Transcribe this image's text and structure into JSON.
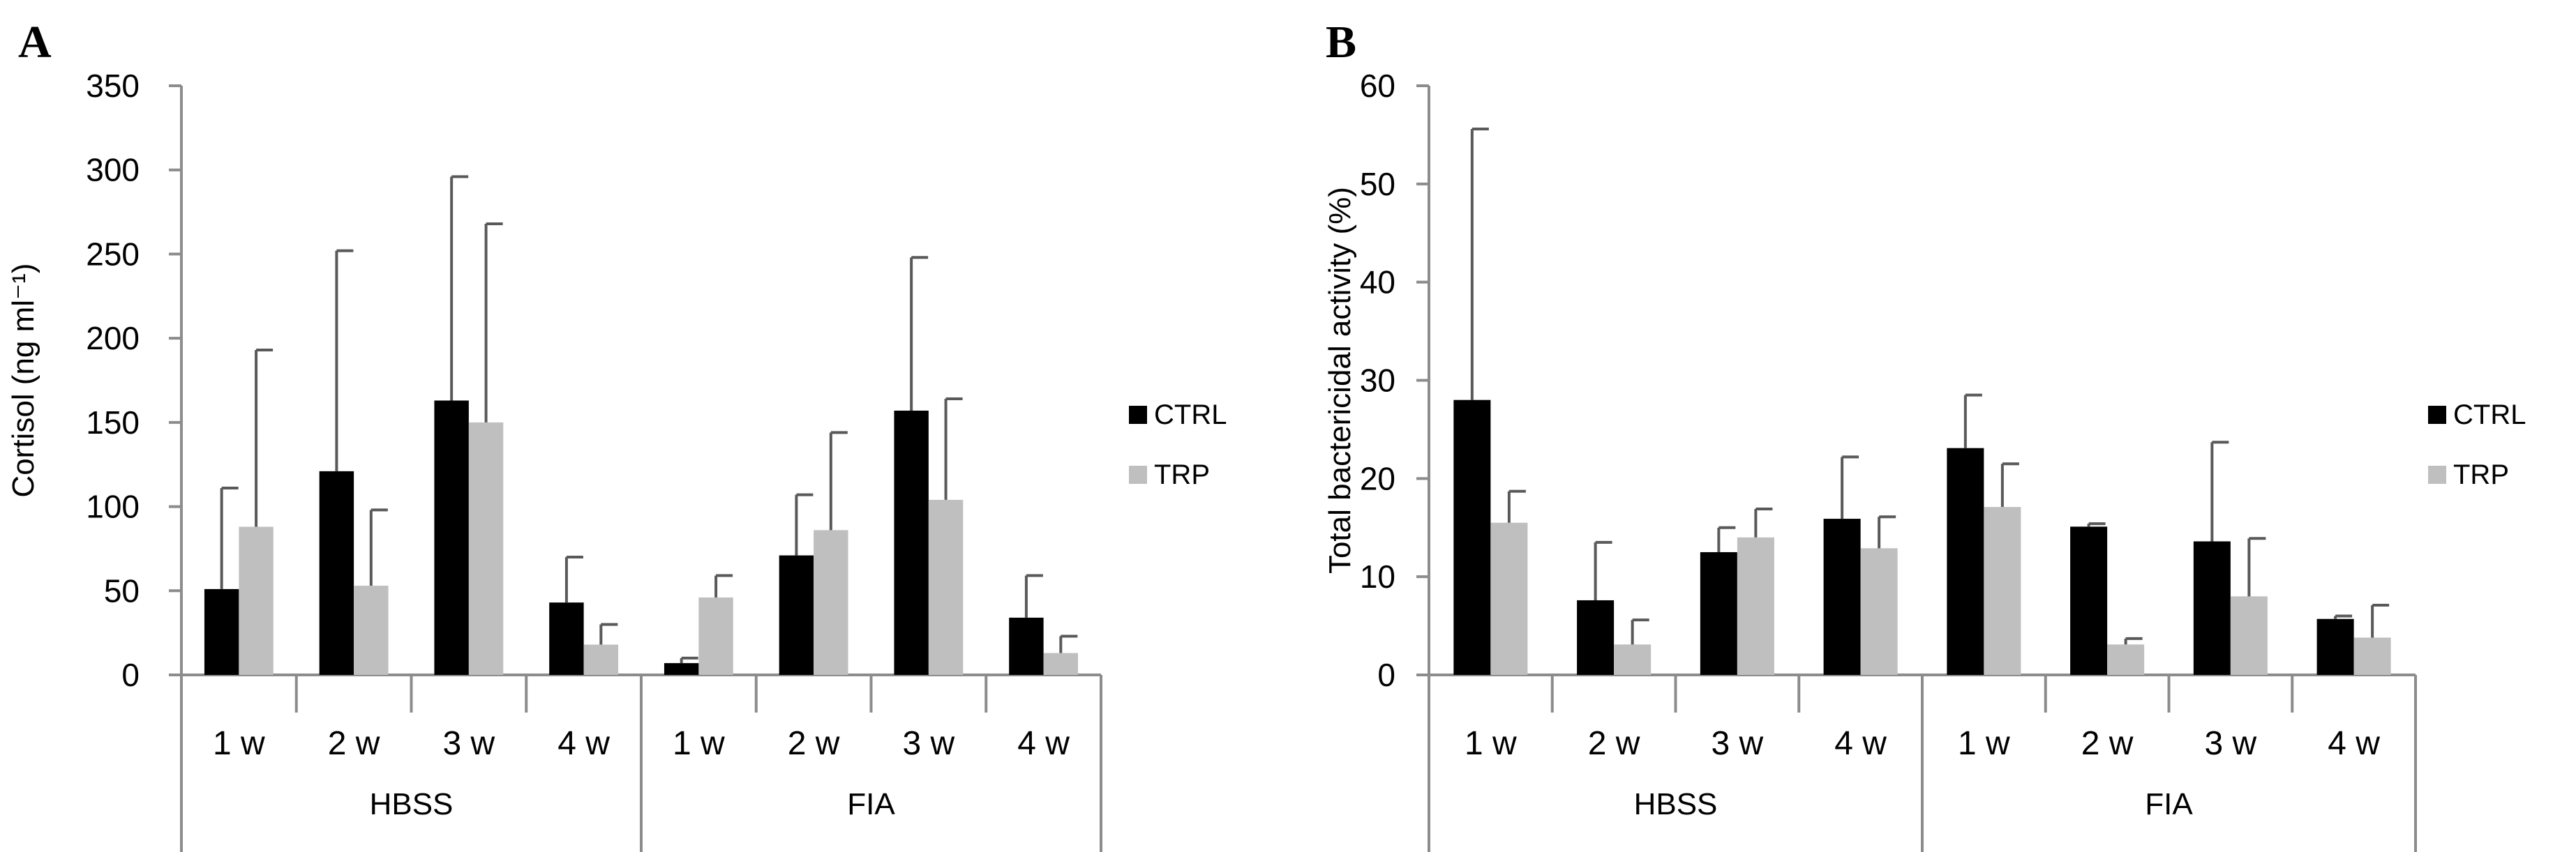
{
  "colors": {
    "ctrl": "#000000",
    "trp": "#bfbfbf",
    "axis": "#8c8c8c",
    "errorbar": "#595959",
    "text": "#000000"
  },
  "chart_data": [
    {
      "panel_label": "A",
      "type": "bar",
      "ylabel": "Cortisol (ng ml⁻¹)",
      "ylim": [
        0,
        350
      ],
      "yticks": [
        0,
        50,
        100,
        150,
        200,
        250,
        300,
        350
      ],
      "groups": [
        {
          "label": "HBSS",
          "categories": [
            "1 w",
            "2 w",
            "3 w",
            "4 w"
          ]
        },
        {
          "label": "FIA",
          "categories": [
            "1 w",
            "2 w",
            "3 w",
            "4 w"
          ]
        }
      ],
      "series": [
        {
          "name": "CTRL",
          "values": [
            51,
            121,
            163,
            43,
            7,
            71,
            157,
            34
          ],
          "errors": [
            60,
            131,
            133,
            27,
            3,
            36,
            91,
            25
          ]
        },
        {
          "name": "TRP",
          "values": [
            88,
            53,
            150,
            18,
            46,
            86,
            104,
            13
          ],
          "errors": [
            105,
            45,
            118,
            12,
            13,
            58,
            60,
            10
          ]
        }
      ],
      "legend": [
        "CTRL",
        "TRP"
      ],
      "legend_position": "right"
    },
    {
      "panel_label": "B",
      "type": "bar",
      "ylabel": "Total bactericidal activity (%)",
      "ylim": [
        0,
        60
      ],
      "yticks": [
        0,
        10,
        20,
        30,
        40,
        50,
        60
      ],
      "groups": [
        {
          "label": "HBSS",
          "categories": [
            "1 w",
            "2 w",
            "3 w",
            "4 w"
          ]
        },
        {
          "label": "FIA",
          "categories": [
            "1 w",
            "2 w",
            "3 w",
            "4 w"
          ]
        }
      ],
      "series": [
        {
          "name": "CTRL",
          "values": [
            28,
            7.6,
            12.5,
            15.9,
            23.1,
            15.1,
            13.6,
            5.7
          ],
          "errors": [
            27.6,
            5.9,
            2.5,
            6.3,
            5.4,
            0.3,
            10.1,
            0.3
          ]
        },
        {
          "name": "TRP",
          "values": [
            15.5,
            3.1,
            14,
            12.9,
            17.1,
            3.1,
            8,
            3.8
          ],
          "errors": [
            3.2,
            2.5,
            2.9,
            3.2,
            4.4,
            0.6,
            5.9,
            3.3
          ]
        }
      ],
      "legend": [
        "CTRL",
        "TRP"
      ],
      "legend_position": "right"
    }
  ]
}
